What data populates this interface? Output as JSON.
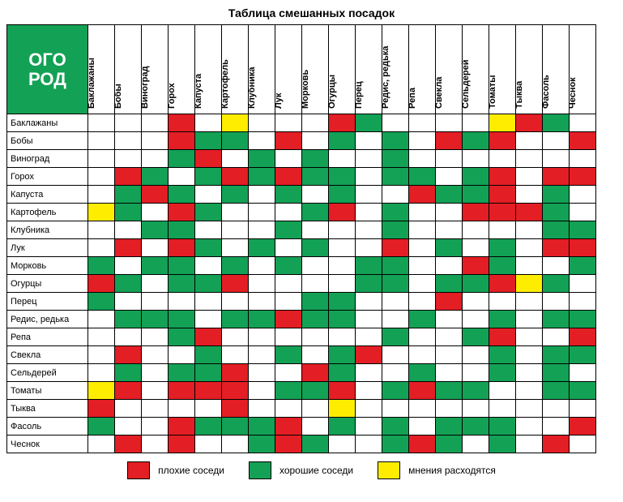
{
  "title": "Таблица смешанных посадок",
  "logo": {
    "line1": "ОГО",
    "line2": "РОД"
  },
  "colors": {
    "good": "#13a155",
    "bad": "#e31e24",
    "mixed": "#ffed00",
    "empty": "#ffffff",
    "border": "#000000",
    "logo_bg": "#13a155"
  },
  "plants": [
    "Баклажаны",
    "Бобы",
    "Виноград",
    "Горох",
    "Капуста",
    "Картофель",
    "Клубника",
    "Лук",
    "Морковь",
    "Огурцы",
    "Перец",
    "Редис, редька",
    "Репа",
    "Свекла",
    "Сельдерей",
    "Томаты",
    "Тыква",
    "Фасоль",
    "Чеснок"
  ],
  "grid": [
    [
      "",
      "",
      "",
      "b",
      "",
      "m",
      "",
      "",
      "",
      "b",
      "g",
      "",
      "",
      "",
      "",
      "m",
      "b",
      "g",
      ""
    ],
    [
      "",
      "",
      "",
      "b",
      "g",
      "g",
      "",
      "b",
      "",
      "g",
      "",
      "g",
      "",
      "b",
      "g",
      "b",
      "",
      "",
      "b"
    ],
    [
      "",
      "",
      "",
      "g",
      "b",
      "",
      "g",
      "",
      "g",
      "",
      "",
      "g",
      "",
      "",
      "",
      "",
      "",
      "",
      ""
    ],
    [
      "",
      "b",
      "g",
      "",
      "g",
      "b",
      "g",
      "b",
      "g",
      "g",
      "",
      "g",
      "g",
      "",
      "g",
      "b",
      "",
      "b",
      "b"
    ],
    [
      "",
      "g",
      "b",
      "g",
      "",
      "g",
      "",
      "g",
      "",
      "g",
      "",
      "",
      "b",
      "g",
      "g",
      "b",
      "",
      "g",
      ""
    ],
    [
      "m",
      "g",
      "",
      "b",
      "g",
      "",
      "",
      "",
      "g",
      "b",
      "",
      "g",
      "",
      "",
      "b",
      "b",
      "b",
      "g",
      ""
    ],
    [
      "",
      "",
      "g",
      "g",
      "",
      "",
      "",
      "g",
      "",
      "",
      "",
      "g",
      "",
      "",
      "",
      "",
      "",
      "g",
      "g"
    ],
    [
      "",
      "b",
      "",
      "b",
      "g",
      "",
      "g",
      "",
      "g",
      "",
      "",
      "b",
      "",
      "g",
      "",
      "g",
      "",
      "b",
      "b"
    ],
    [
      "g",
      "",
      "g",
      "g",
      "",
      "g",
      "",
      "g",
      "",
      "",
      "g",
      "g",
      "",
      "",
      "b",
      "g",
      "",
      "",
      "g"
    ],
    [
      "b",
      "g",
      "",
      "g",
      "g",
      "b",
      "",
      "",
      "",
      "",
      "g",
      "g",
      "",
      "g",
      "g",
      "b",
      "m",
      "g",
      ""
    ],
    [
      "g",
      "",
      "",
      "",
      "",
      "",
      "",
      "",
      "g",
      "g",
      "",
      "",
      "",
      "b",
      "",
      "",
      "",
      "",
      ""
    ],
    [
      "",
      "g",
      "g",
      "g",
      "",
      "g",
      "g",
      "b",
      "g",
      "g",
      "",
      "",
      "g",
      "",
      "",
      "g",
      "",
      "g",
      "g"
    ],
    [
      "",
      "",
      "",
      "g",
      "b",
      "",
      "",
      "",
      "",
      "",
      "",
      "g",
      "",
      "",
      "g",
      "b",
      "",
      "",
      "b"
    ],
    [
      "",
      "b",
      "",
      "",
      "g",
      "",
      "",
      "g",
      "",
      "g",
      "b",
      "",
      "",
      "",
      "",
      "g",
      "",
      "g",
      "g"
    ],
    [
      "",
      "g",
      "",
      "g",
      "g",
      "b",
      "",
      "",
      "b",
      "g",
      "",
      "",
      "g",
      "",
      "",
      "g",
      "",
      "g",
      ""
    ],
    [
      "m",
      "b",
      "",
      "b",
      "b",
      "b",
      "",
      "g",
      "g",
      "b",
      "",
      "g",
      "b",
      "g",
      "g",
      "",
      "",
      "g",
      "g"
    ],
    [
      "b",
      "",
      "",
      "",
      "",
      "b",
      "",
      "",
      "",
      "m",
      "",
      "",
      "",
      "",
      "",
      "",
      "",
      "",
      ""
    ],
    [
      "g",
      "",
      "",
      "b",
      "g",
      "g",
      "g",
      "b",
      "",
      "g",
      "",
      "g",
      "",
      "g",
      "g",
      "g",
      "",
      "",
      "b"
    ],
    [
      "",
      "b",
      "",
      "b",
      "",
      "",
      "g",
      "b",
      "g",
      "",
      "",
      "g",
      "b",
      "g",
      "",
      "g",
      "",
      "b",
      ""
    ]
  ],
  "legend": {
    "bad": "плохие соседи",
    "good": "хорошие соседи",
    "mixed": "мнения расходятся"
  }
}
